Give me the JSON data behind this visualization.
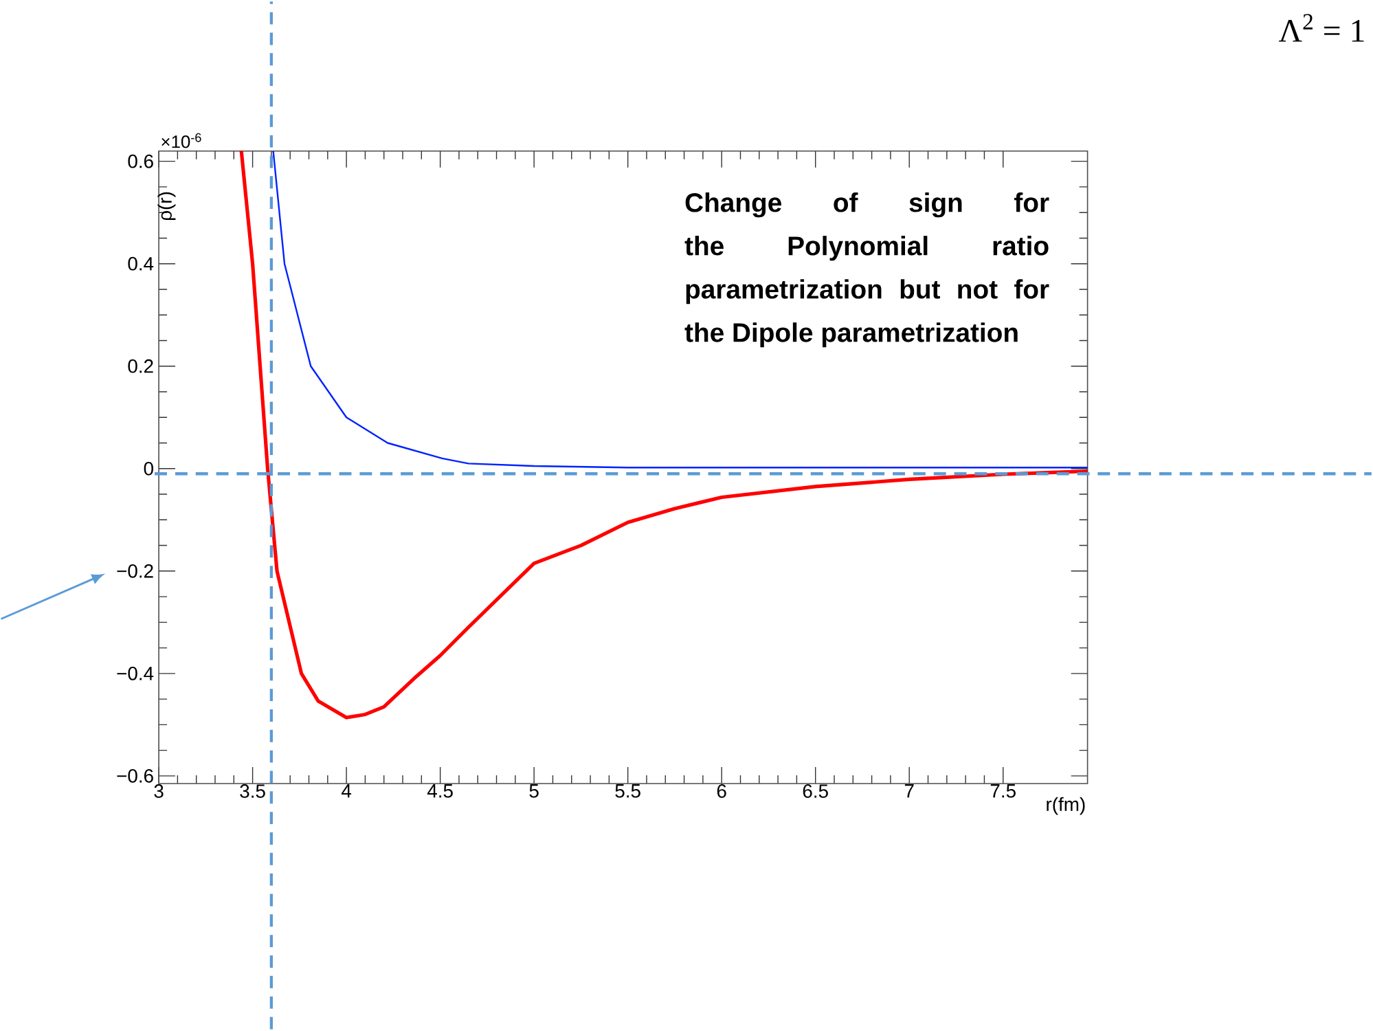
{
  "chart_data": {
    "type": "line",
    "xlabel": "r(fm)",
    "ylabel": "ρ(r)",
    "xlim": [
      3,
      7.95
    ],
    "ylim": [
      -0.615,
      0.62
    ],
    "xticks": [
      3,
      3.5,
      4,
      4.5,
      5,
      5.5,
      6,
      6.5,
      7,
      7.5
    ],
    "yticks": [
      {
        "value": -0.6,
        "label": "−0.6"
      },
      {
        "value": -0.4,
        "label": "−0.4"
      },
      {
        "value": -0.2,
        "label": "−0.2"
      },
      0,
      0.2,
      0.4,
      0.6
    ],
    "series": [
      {
        "color": "#ff0000",
        "x": [
          3.44,
          3.5,
          3.54,
          3.58,
          3.63,
          3.76,
          3.85,
          4.0,
          4.1,
          4.2,
          4.36,
          4.5,
          4.65,
          5.0,
          5.25,
          5.5,
          5.75,
          6.0,
          6.5,
          7.0,
          7.5,
          7.95
        ],
        "values": [
          0.62,
          0.4,
          0.2,
          0,
          -0.2,
          -0.4,
          -0.454,
          -0.486,
          -0.48,
          -0.465,
          -0.41,
          -0.365,
          -0.31,
          -0.185,
          -0.15,
          -0.105,
          -0.078,
          -0.056,
          -0.035,
          -0.021,
          -0.011,
          -0.005
        ]
      },
      {
        "color": "#0022ff",
        "x": [
          3.61,
          3.67,
          3.81,
          4.0,
          4.22,
          4.51,
          4.65,
          5.0,
          5.5,
          6.0,
          7.0,
          7.95
        ],
        "values": [
          0.62,
          0.4,
          0.2,
          0.1,
          0.05,
          0.02,
          0.01,
          0.005,
          0.002,
          0.002,
          0.002,
          0.002
        ]
      }
    ],
    "ref_lines": [
      {
        "axis": "y",
        "value": -0.01,
        "color": "#5b9bd5",
        "line_style": "dashed"
      },
      {
        "axis": "x",
        "value": 3.6,
        "color": "#5b9bd5",
        "line_style": "dashed"
      }
    ],
    "annotations": [
      "×10$^{-6}$",
      "Change of sign for the Polynomial ratio parametrization but not for the Dipole parametrization",
      "Λ$^{2}$ = 1"
    ],
    "grid": false,
    "marker": "none",
    "line_style": "solid"
  }
}
